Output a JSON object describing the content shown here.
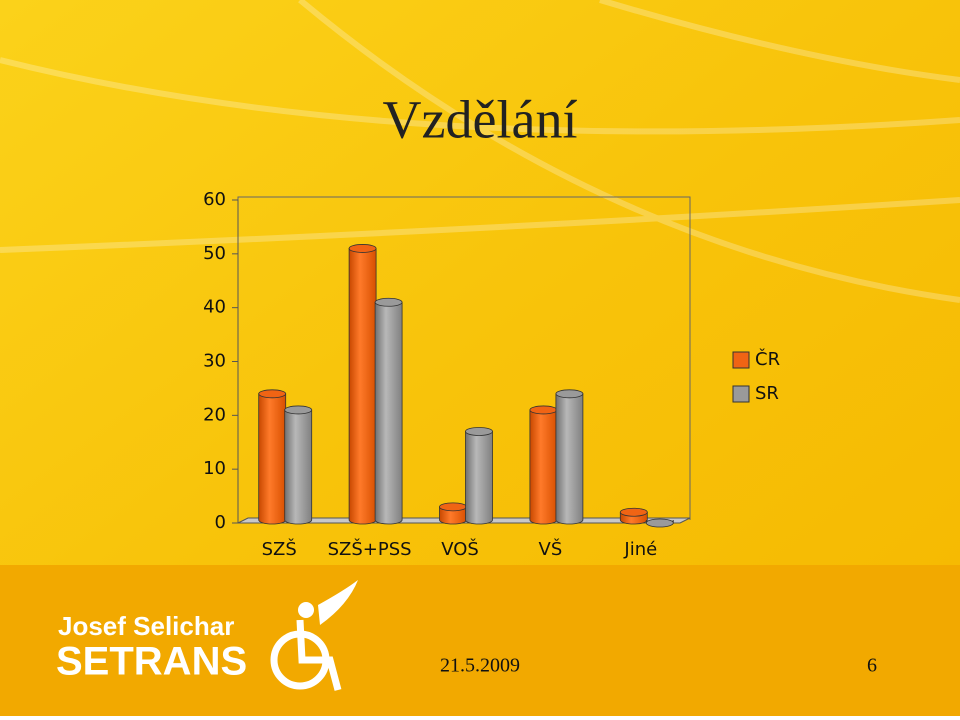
{
  "chart_data": {
    "type": "bar",
    "title": "Vzdělání",
    "categories": [
      "SZŠ",
      "SZŠ+PSS",
      "VOŠ",
      "VŠ",
      "Jiné"
    ],
    "series": [
      {
        "name": "ČR",
        "color": "#f06414",
        "values": [
          24,
          51,
          3,
          21,
          2
        ]
      },
      {
        "name": "SR",
        "color": "#9a9a9a",
        "values": [
          21,
          41,
          17,
          24,
          0
        ]
      }
    ],
    "ylim": [
      0,
      60
    ],
    "yticks": [
      0,
      10,
      20,
      30,
      40,
      50,
      60
    ],
    "grid": false,
    "legend": "right"
  },
  "logo": {
    "line1": "Josef Selichar",
    "line2": "SETRANS"
  },
  "footer": {
    "date": "21.5.2009",
    "page": "6"
  }
}
